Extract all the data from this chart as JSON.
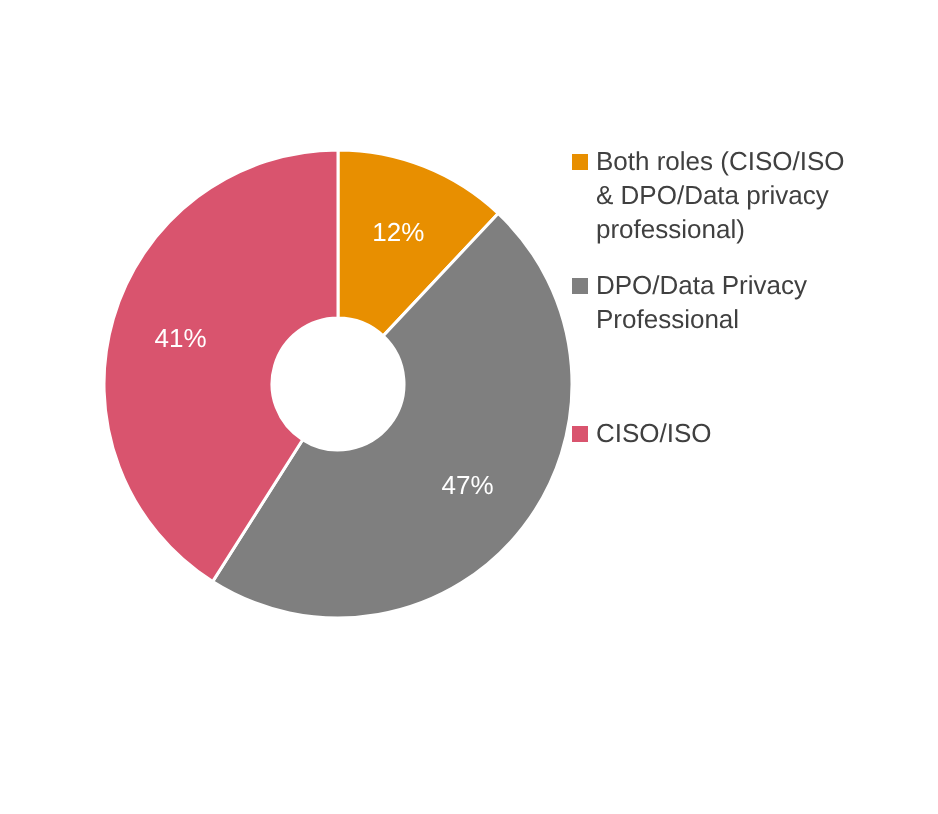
{
  "chart_data": {
    "type": "donut",
    "categories": [
      "Both roles (CISO/ISO & DPO/Data privacy professional)",
      "DPO/Data Privacy Professional",
      "CISO/ISO"
    ],
    "values": [
      12,
      47,
      41
    ],
    "colors": [
      "#e88f00",
      "#7f7f7f",
      "#d9546e"
    ],
    "value_labels": [
      "12%",
      "47%",
      "41%"
    ],
    "legend": "right"
  }
}
